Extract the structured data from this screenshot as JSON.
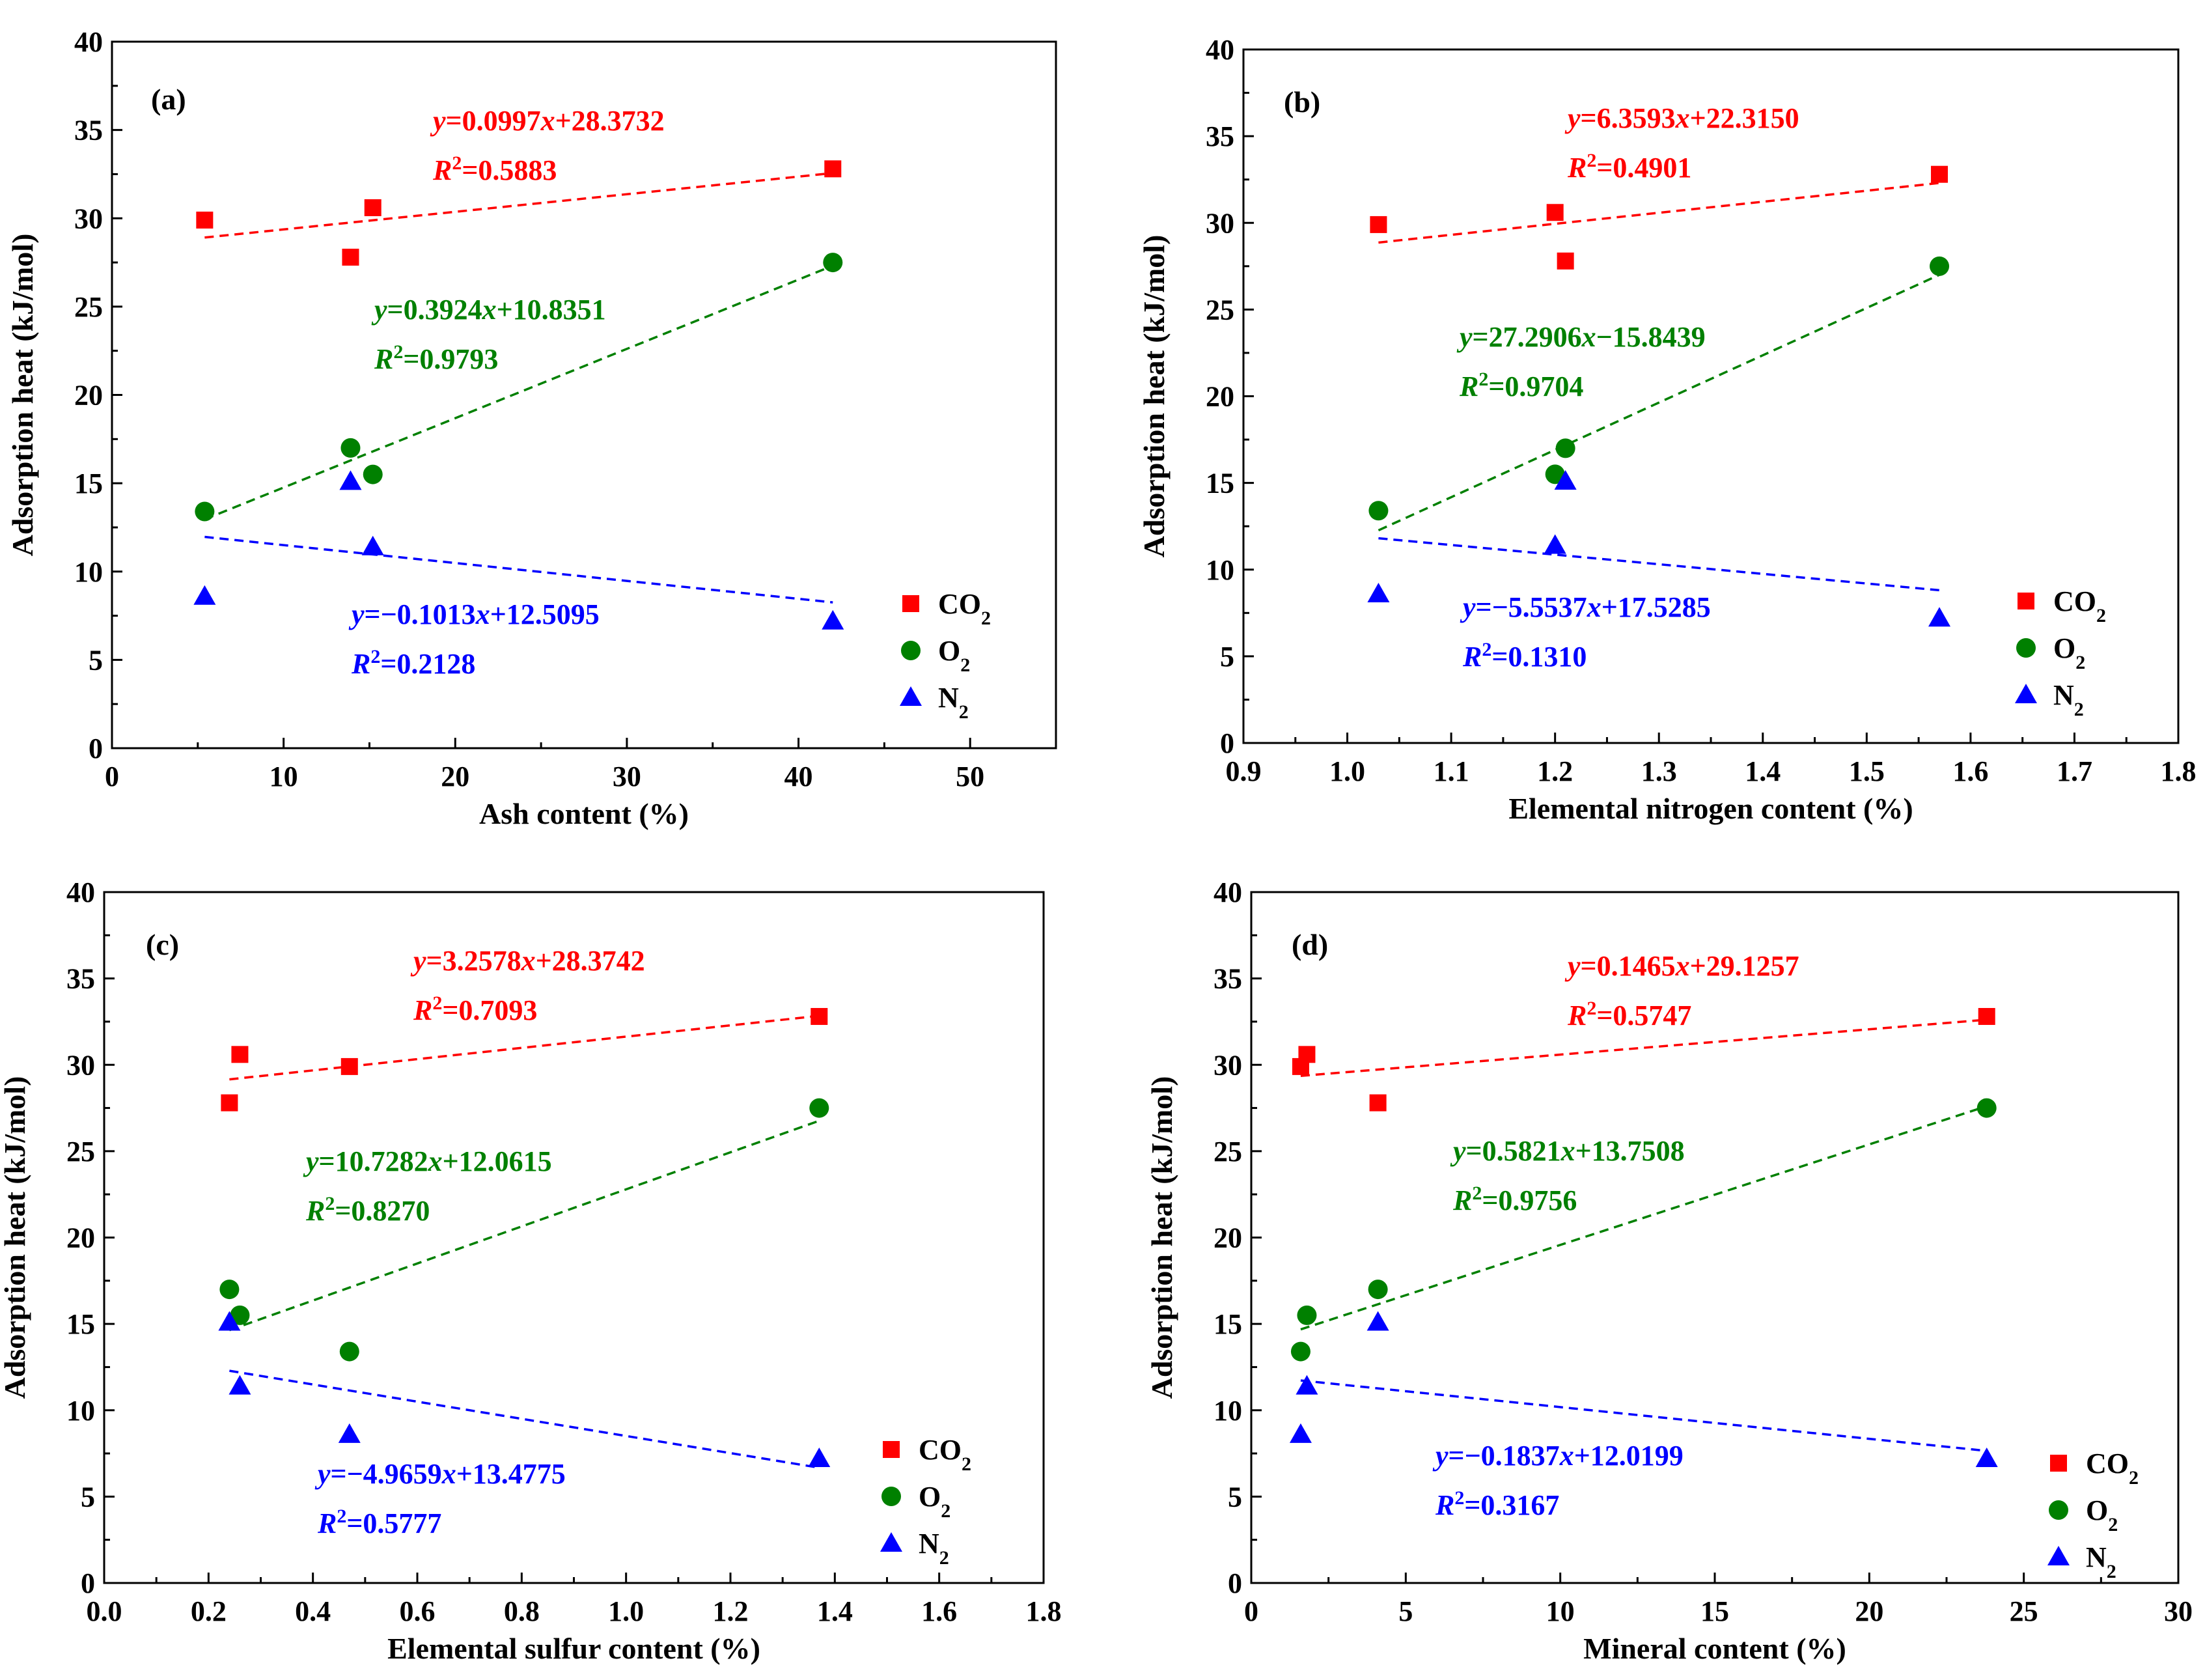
{
  "colors": {
    "co2": "#ff0000",
    "o2": "#008000",
    "n2": "#0000ff",
    "axis": "#000000"
  },
  "legend_labels": {
    "co2": "CO",
    "o2": "O",
    "n2": "N",
    "sub": "2"
  },
  "equation_prefix": {
    "y": "y",
    "eq": "=",
    "r": "R",
    "sup": "2",
    "x": "x"
  },
  "chart_data": [
    {
      "type": "scatter",
      "panel_label": "(a)",
      "xlabel": "Ash content (%)",
      "ylabel": "Adsorption heat (kJ/mol)",
      "xlim": [
        0,
        55
      ],
      "ylim": [
        0,
        40
      ],
      "xticks": [
        0,
        10,
        20,
        30,
        40,
        50
      ],
      "xtick_labels": [
        "0",
        "10",
        "20",
        "30",
        "40",
        "50"
      ],
      "yticks": [
        0,
        5,
        10,
        15,
        20,
        25,
        30,
        35,
        40
      ],
      "ytick_labels": [
        "0",
        "5",
        "10",
        "15",
        "20",
        "25",
        "30",
        "35",
        "40"
      ],
      "series": [
        {
          "name": "CO2",
          "key": "co2",
          "marker": "square",
          "x": [
            5.4,
            13.9,
            15.2,
            42.0
          ],
          "y": [
            29.9,
            27.8,
            30.6,
            32.8
          ],
          "fit": {
            "slope": 0.0997,
            "intercept": 28.3732,
            "x_range": [
              5.4,
              42.0
            ]
          },
          "eq_coef": "0.0997",
          "eq_sign": "+",
          "eq_const": "28.3732",
          "r2_value": "0.5883"
        },
        {
          "name": "O2",
          "key": "o2",
          "marker": "circle",
          "x": [
            5.4,
            13.9,
            15.2,
            42.0
          ],
          "y": [
            13.4,
            17.0,
            15.5,
            27.5
          ],
          "fit": {
            "slope": 0.3924,
            "intercept": 10.8351,
            "x_range": [
              5.4,
              42.0
            ]
          },
          "eq_coef": "0.3924",
          "eq_sign": "+",
          "eq_const": "10.8351",
          "r2_value": "0.9793"
        },
        {
          "name": "N2",
          "key": "n2",
          "marker": "triangle",
          "x": [
            5.4,
            13.9,
            15.2,
            42.0
          ],
          "y": [
            8.6,
            15.1,
            11.4,
            7.2
          ],
          "fit": {
            "slope": -0.1013,
            "intercept": 12.5095,
            "x_range": [
              5.4,
              42.0
            ]
          },
          "eq_coef": "−0.1013",
          "eq_sign": "+",
          "eq_const": "12.5095",
          "r2_value": "0.2128"
        }
      ]
    },
    {
      "type": "scatter",
      "panel_label": "(b)",
      "xlabel": "Elemental nitrogen content (%)",
      "ylabel": "Adsorption heat (kJ/mol)",
      "xlim": [
        0.9,
        1.8
      ],
      "ylim": [
        0,
        40
      ],
      "xticks": [
        0.9,
        1.0,
        1.1,
        1.2,
        1.3,
        1.4,
        1.5,
        1.6,
        1.7,
        1.8
      ],
      "xtick_labels": [
        "0.9",
        "1.0",
        "1.1",
        "1.2",
        "1.3",
        "1.4",
        "1.5",
        "1.6",
        "1.7",
        "1.8"
      ],
      "yticks": [
        0,
        5,
        10,
        15,
        20,
        25,
        30,
        35,
        40
      ],
      "ytick_labels": [
        "0",
        "5",
        "10",
        "15",
        "20",
        "25",
        "30",
        "35",
        "40"
      ],
      "series": [
        {
          "name": "CO2",
          "key": "co2",
          "marker": "square",
          "x": [
            1.03,
            1.2,
            1.21,
            1.57
          ],
          "y": [
            29.9,
            30.6,
            27.8,
            32.8
          ],
          "fit": {
            "slope": 6.3593,
            "intercept": 22.315,
            "x_range": [
              1.03,
              1.57
            ]
          },
          "eq_coef": "6.3593",
          "eq_sign": "+",
          "eq_const": "22.3150",
          "r2_value": "0.4901"
        },
        {
          "name": "O2",
          "key": "o2",
          "marker": "circle",
          "x": [
            1.03,
            1.2,
            1.21,
            1.57
          ],
          "y": [
            13.4,
            15.5,
            17.0,
            27.5
          ],
          "fit": {
            "slope": 27.2906,
            "intercept": -15.8439,
            "x_range": [
              1.03,
              1.57
            ]
          },
          "eq_coef": "27.2906",
          "eq_sign": "−",
          "eq_const": "15.8439",
          "r2_value": "0.9704"
        },
        {
          "name": "N2",
          "key": "n2",
          "marker": "triangle",
          "x": [
            1.03,
            1.2,
            1.21,
            1.57
          ],
          "y": [
            8.6,
            11.4,
            15.1,
            7.2
          ],
          "fit": {
            "slope": -5.5537,
            "intercept": 17.5285,
            "x_range": [
              1.03,
              1.57
            ]
          },
          "eq_coef": "−5.5537",
          "eq_sign": "+",
          "eq_const": "17.5285",
          "r2_value": "0.1310"
        }
      ]
    },
    {
      "type": "scatter",
      "panel_label": "(c)",
      "xlabel": "Elemental sulfur content (%)",
      "ylabel": "Adsorption heat (kJ/mol)",
      "xlim": [
        0.0,
        1.8
      ],
      "ylim": [
        0,
        40
      ],
      "xticks": [
        0.0,
        0.2,
        0.4,
        0.6,
        0.8,
        1.0,
        1.2,
        1.4,
        1.6,
        1.8
      ],
      "xtick_labels": [
        "0.0",
        "0.2",
        "0.4",
        "0.6",
        "0.8",
        "1.0",
        "1.2",
        "1.4",
        "1.6",
        "1.8"
      ],
      "yticks": [
        0,
        5,
        10,
        15,
        20,
        25,
        30,
        35,
        40
      ],
      "ytick_labels": [
        "0",
        "5",
        "10",
        "15",
        "20",
        "25",
        "30",
        "35",
        "40"
      ],
      "series": [
        {
          "name": "CO2",
          "key": "co2",
          "marker": "square",
          "x": [
            0.24,
            0.26,
            0.47,
            1.37
          ],
          "y": [
            27.8,
            30.6,
            29.9,
            32.8
          ],
          "fit": {
            "slope": 3.2578,
            "intercept": 28.3742,
            "x_range": [
              0.24,
              1.37
            ]
          },
          "eq_coef": "3.2578",
          "eq_sign": "+",
          "eq_const": "28.3742",
          "r2_value": "0.7093"
        },
        {
          "name": "O2",
          "key": "o2",
          "marker": "circle",
          "x": [
            0.24,
            0.26,
            0.47,
            1.37
          ],
          "y": [
            17.0,
            15.5,
            13.4,
            27.5
          ],
          "fit": {
            "slope": 10.7282,
            "intercept": 12.0615,
            "x_range": [
              0.24,
              1.37
            ]
          },
          "eq_coef": "10.7282",
          "eq_sign": "+",
          "eq_const": "12.0615",
          "r2_value": "0.8270"
        },
        {
          "name": "N2",
          "key": "n2",
          "marker": "triangle",
          "x": [
            0.24,
            0.26,
            0.47,
            1.37
          ],
          "y": [
            15.1,
            11.4,
            8.6,
            7.2
          ],
          "fit": {
            "slope": -4.9659,
            "intercept": 13.4775,
            "x_range": [
              0.24,
              1.37
            ]
          },
          "eq_coef": "−4.9659",
          "eq_sign": "+",
          "eq_const": "13.4775",
          "r2_value": "0.5777"
        }
      ]
    },
    {
      "type": "scatter",
      "panel_label": "(d)",
      "xlabel": "Mineral content (%)",
      "ylabel": "Adsorption heat (kJ/mol)",
      "xlim": [
        0,
        30
      ],
      "ylim": [
        0,
        40
      ],
      "xticks": [
        0,
        5,
        10,
        15,
        20,
        25,
        30
      ],
      "xtick_labels": [
        "0",
        "5",
        "10",
        "15",
        "20",
        "25",
        "30"
      ],
      "yticks": [
        0,
        5,
        10,
        15,
        20,
        25,
        30,
        35,
        40
      ],
      "ytick_labels": [
        "0",
        "5",
        "10",
        "15",
        "20",
        "25",
        "30",
        "35",
        "40"
      ],
      "series": [
        {
          "name": "CO2",
          "key": "co2",
          "marker": "square",
          "x": [
            1.6,
            1.8,
            4.1,
            23.8
          ],
          "y": [
            29.9,
            30.6,
            27.8,
            32.8
          ],
          "fit": {
            "slope": 0.1465,
            "intercept": 29.1257,
            "x_range": [
              1.6,
              23.8
            ]
          },
          "eq_coef": "0.1465",
          "eq_sign": "+",
          "eq_const": "29.1257",
          "r2_value": "0.5747"
        },
        {
          "name": "O2",
          "key": "o2",
          "marker": "circle",
          "x": [
            1.6,
            1.8,
            4.1,
            23.8
          ],
          "y": [
            13.4,
            15.5,
            17.0,
            27.5
          ],
          "fit": {
            "slope": 0.5821,
            "intercept": 13.7508,
            "x_range": [
              1.6,
              23.8
            ]
          },
          "eq_coef": "0.5821",
          "eq_sign": "+",
          "eq_const": "13.7508",
          "r2_value": "0.9756"
        },
        {
          "name": "N2",
          "key": "n2",
          "marker": "triangle",
          "x": [
            1.6,
            1.8,
            4.1,
            23.8
          ],
          "y": [
            8.6,
            11.4,
            15.1,
            7.2
          ],
          "fit": {
            "slope": -0.1837,
            "intercept": 12.0199,
            "x_range": [
              1.6,
              23.8
            ]
          },
          "eq_coef": "−0.1837",
          "eq_sign": "+",
          "eq_const": "12.0199",
          "r2_value": "0.3167"
        }
      ]
    }
  ]
}
